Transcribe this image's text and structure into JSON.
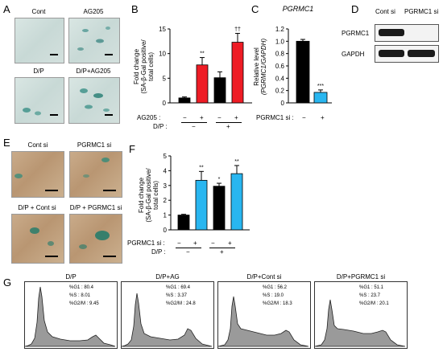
{
  "panels": {
    "A": "A",
    "B": "B",
    "C": "C",
    "D": "D",
    "E": "E",
    "F": "F",
    "G": "G"
  },
  "panelA": {
    "titles": [
      "Cont",
      "AG205",
      "D/P",
      "D/P+AG205"
    ]
  },
  "panelB": {
    "ylabel_line1": "Fold change",
    "ylabel_line2": "(SA-β-Gal positive/",
    "ylabel_line3": "total cells)",
    "row1_label": "AG205 :",
    "row1_signs": [
      "−",
      "+",
      "−",
      "+"
    ],
    "row2_label": "D/P :",
    "row2_signs": [
      "−",
      "+"
    ],
    "stars": [
      "**",
      "††"
    ]
  },
  "panelC": {
    "title": "PGRMC1",
    "ylabel_line1": "Relative level",
    "ylabel_line2": "(PGRMC1/GAPDH)",
    "row_label": "PGRMC1 si :",
    "signs": [
      "−",
      "+"
    ],
    "stars": "***"
  },
  "panelD": {
    "col_labels": [
      "Cont si",
      "PGRMC1 si"
    ],
    "rows": [
      "PGRMC1",
      "GAPDH"
    ]
  },
  "panelE": {
    "titles": [
      "Cont si",
      "PGRMC1 si",
      "D/P + Cont si",
      "D/P + PGRMC1 si"
    ]
  },
  "panelF": {
    "ylabel_line1": "Fold change",
    "ylabel_line2": "(SA-β-Gal positive/",
    "ylabel_line3": "total cells)",
    "row1_label": "PGRMC1 si :",
    "row1_signs": [
      "−",
      "+",
      "−",
      "+"
    ],
    "row2_label": "D/P :",
    "row2_signs": [
      "−",
      "+"
    ],
    "stars": [
      "**",
      "*",
      "**"
    ]
  },
  "panelG": {
    "histograms": [
      {
        "title": "D/P",
        "g1": "%G1 : 80.4",
        "s": "%S : 8.01",
        "g2m": "%G2/M : 9.45"
      },
      {
        "title": "D/P+AG",
        "g1": "%G1 : 69.4",
        "s": "%S : 3.37",
        "g2m": "%G2/M : 24.8"
      },
      {
        "title": "D/P+Cont si",
        "g1": "%G1 : 56.2",
        "s": "%S : 19.0",
        "g2m": "%G2/M : 18.3"
      },
      {
        "title": "D/P+PGRMC1 si",
        "g1": "%G1 : 51.1",
        "s": "%S : 23.7",
        "g2m": "%G2/M : 20.1"
      }
    ]
  },
  "colors": {
    "black_bar": "#000000",
    "red_bar": "#ee1c25",
    "blue_bar": "#29b6f0",
    "histogram_fill": "#9a9a9a"
  },
  "chart_data": [
    {
      "type": "bar",
      "panel": "B",
      "categories": [
        "AG205− D/P−",
        "AG205+ D/P−",
        "AG205− D/P+",
        "AG205+ D/P+"
      ],
      "values": [
        1.0,
        7.7,
        5.1,
        12.3
      ],
      "errors": [
        0.2,
        1.5,
        1.2,
        1.8
      ],
      "bar_colors": [
        "#000000",
        "#ee1c25",
        "#000000",
        "#ee1c25"
      ],
      "ylim": [
        0,
        15
      ],
      "yticks": [
        "0",
        "5",
        "10",
        "15"
      ]
    },
    {
      "type": "bar",
      "panel": "C",
      "categories": [
        "PGRMC1 si −",
        "PGRMC1 si +"
      ],
      "values": [
        1.0,
        0.17
      ],
      "errors": [
        0.03,
        0.04
      ],
      "bar_colors": [
        "#000000",
        "#29b6f0"
      ],
      "ylim": [
        0,
        1.2
      ],
      "yticks": [
        "0",
        "0.2",
        "0.4",
        "0.6",
        "0.8",
        "1.0",
        "1.2"
      ]
    },
    {
      "type": "bar",
      "panel": "F",
      "categories": [
        "PGRMC1 si− D/P−",
        "PGRMC1 si+ D/P−",
        "PGRMC1 si− D/P+",
        "PGRMC1 si+ D/P+"
      ],
      "values": [
        1.0,
        3.35,
        2.95,
        3.8
      ],
      "errors": [
        0.05,
        0.6,
        0.2,
        0.55
      ],
      "bar_colors": [
        "#000000",
        "#29b6f0",
        "#000000",
        "#29b6f0"
      ],
      "ylim": [
        0,
        5
      ],
      "yticks": [
        "0",
        "1",
        "2",
        "3",
        "4",
        "5"
      ]
    }
  ]
}
